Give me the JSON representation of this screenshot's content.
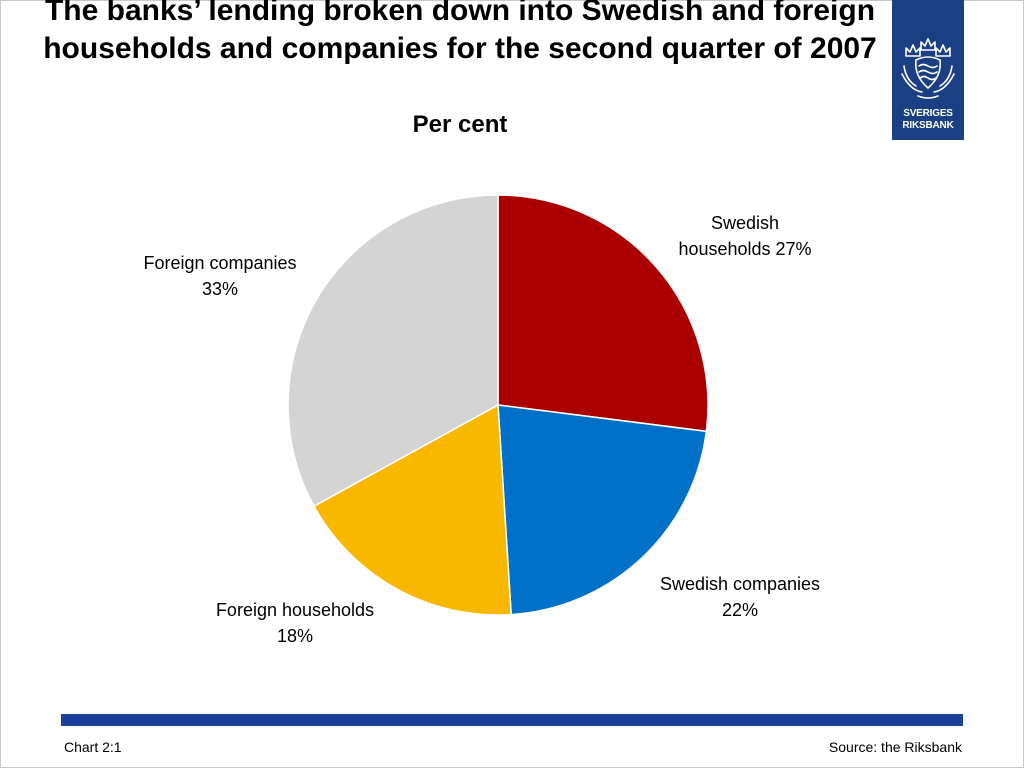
{
  "slide": {
    "title": "The banks’ lending broken down into Swedish and foreign households and companies for the second quarter of 2007",
    "subtitle": "Per cent",
    "chart_number": "Chart 2:1",
    "source": "Source: the Riksbank"
  },
  "logo": {
    "line1": "SVERIGES",
    "line2": "RIKSBANK",
    "background": "#1b3f84",
    "icon": "riksbank-crown-emblem-icon"
  },
  "footer": {
    "bar_color": "#1b3f9a"
  },
  "chart_data": {
    "type": "pie",
    "title": "The banks’ lending broken down into Swedish and foreign households and companies for the second quarter of 2007",
    "subtitle": "Per cent",
    "start_angle_deg": 0,
    "direction": "clockwise",
    "legend": "none",
    "slices": [
      {
        "name_lines": [
          "Swedish",
          "households 27%"
        ],
        "label": "Swedish households",
        "value": 27,
        "color": "#aa0000"
      },
      {
        "name_lines": [
          "Swedish companies",
          "22%"
        ],
        "label": "Swedish companies",
        "value": 22,
        "color": "#0070c8"
      },
      {
        "name_lines": [
          "Foreign households",
          "18%"
        ],
        "label": "Foreign households",
        "value": 18,
        "color": "#f8b800"
      },
      {
        "name_lines": [
          "Foreign companies",
          "33%"
        ],
        "label": "Foreign companies",
        "value": 33,
        "color": "#d4d4d4"
      }
    ]
  }
}
